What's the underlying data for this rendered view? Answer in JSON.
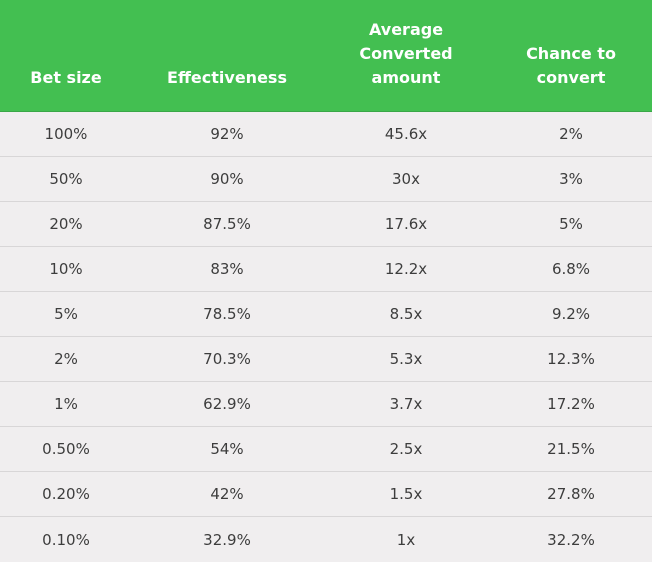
{
  "colors": {
    "header_bg": "#43bf51",
    "body_bg": "#f0eeef",
    "text": "#3d3d3d"
  },
  "table": {
    "headers": [
      "Bet size",
      "Effectiveness",
      "Average\nConverted\namount",
      "Chance to\nconvert"
    ],
    "rows": [
      [
        "100%",
        "92%",
        "45.6x",
        "2%"
      ],
      [
        "50%",
        "90%",
        "30x",
        "3%"
      ],
      [
        "20%",
        "87.5%",
        "17.6x",
        "5%"
      ],
      [
        "10%",
        "83%",
        "12.2x",
        "6.8%"
      ],
      [
        "5%",
        "78.5%",
        "8.5x",
        "9.2%"
      ],
      [
        "2%",
        "70.3%",
        "5.3x",
        "12.3%"
      ],
      [
        "1%",
        "62.9%",
        "3.7x",
        "17.2%"
      ],
      [
        "0.50%",
        "54%",
        "2.5x",
        "21.5%"
      ],
      [
        "0.20%",
        "42%",
        "1.5x",
        "27.8%"
      ],
      [
        "0.10%",
        "32.9%",
        "1x",
        "32.2%"
      ]
    ]
  }
}
